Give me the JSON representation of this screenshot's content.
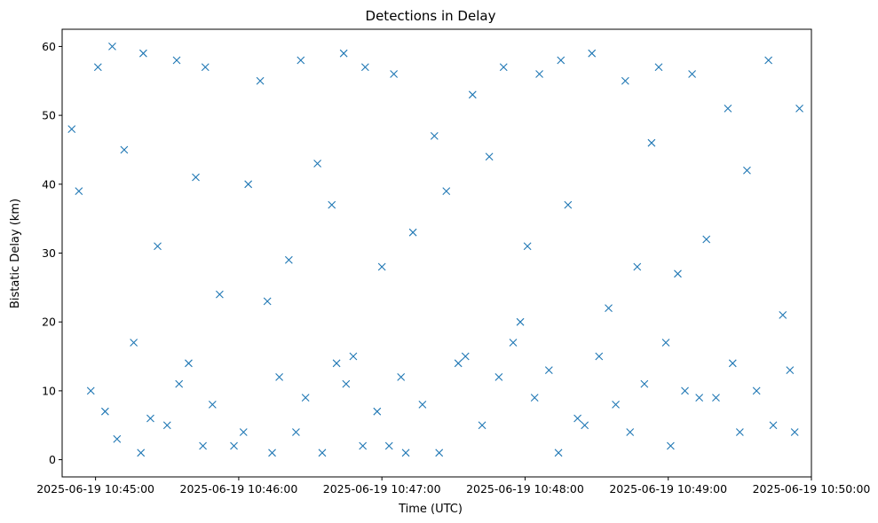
{
  "chart_data": {
    "type": "scatter",
    "title": "Detections in Delay",
    "xlabel": "Time (UTC)",
    "ylabel": "Bistatic Delay (km)",
    "marker": "x",
    "marker_color": "#1f77b4",
    "xlim": [
      "2025-06-19 10:44:46",
      "2025-06-19 10:50:00"
    ],
    "ylim": [
      -2.5,
      62.5
    ],
    "x_tick_labels": [
      "2025-06-19 10:45:00",
      "2025-06-19 10:46:00",
      "2025-06-19 10:47:00",
      "2025-06-19 10:48:00",
      "2025-06-19 10:49:00",
      "2025-06-19 10:50:00"
    ],
    "y_ticks": [
      0,
      10,
      20,
      30,
      40,
      50,
      60
    ],
    "y_tick_labels": [
      "0",
      "10",
      "20",
      "30",
      "40",
      "50",
      "60"
    ],
    "grid": false,
    "legend": "none",
    "series": [
      {
        "x": [
          "10:44:50",
          "10:45:01",
          "10:45:07",
          "10:45:20",
          "10:45:34",
          "10:45:46",
          "10:46:09",
          "10:46:26",
          "10:46:44",
          "10:46:53",
          "10:47:05",
          "10:47:22",
          "10:47:38",
          "10:47:51",
          "10:48:06",
          "10:48:15",
          "10:48:28",
          "10:48:42",
          "10:48:56",
          "10:49:10",
          "10:49:25",
          "10:49:42",
          "10:49:55",
          "10:45:12",
          "10:46:33",
          "10:47:45",
          "10:48:53",
          "10:46:04",
          "10:44:53",
          "10:45:42",
          "10:46:39",
          "10:47:27",
          "10:48:18",
          "10:49:33",
          "10:45:26",
          "10:46:21",
          "10:47:13",
          "10:48:01",
          "10:48:47",
          "10:49:16",
          "10:45:52",
          "10:46:12",
          "10:47:00",
          "10:47:58",
          "10:48:35",
          "10:49:04",
          "10:49:48",
          "10:45:16",
          "10:46:48",
          "10:47:32"
        ],
        "y": [
          48,
          57,
          60,
          59,
          58,
          57,
          55,
          58,
          59,
          57,
          56,
          47,
          53,
          57,
          56,
          58,
          59,
          55,
          57,
          56,
          51,
          58,
          51,
          45,
          43,
          44,
          46,
          40,
          39,
          41,
          37,
          39,
          37,
          42,
          31,
          29,
          33,
          31,
          28,
          32,
          24,
          23,
          28,
          20,
          22,
          27,
          21,
          17,
          15,
          14
        ]
      },
      {
        "x": [
          "10:44:58",
          "10:45:23",
          "10:45:49",
          "10:46:17",
          "10:46:41",
          "10:47:08",
          "10:47:35",
          "10:48:04",
          "10:48:31",
          "10:48:59",
          "10:49:27",
          "10:49:51",
          "10:45:04",
          "10:45:39",
          "10:46:28",
          "10:47:17",
          "10:48:10",
          "10:48:50",
          "10:49:37",
          "10:45:30",
          "10:46:02",
          "10:46:58",
          "10:47:49",
          "10:48:38",
          "10:49:20",
          "10:45:09",
          "10:45:58",
          "10:46:52",
          "10:47:42",
          "10:48:22",
          "10:49:07",
          "10:49:44",
          "10:45:19",
          "10:46:35",
          "10:47:24",
          "10:48:14",
          "10:49:01",
          "10:49:53",
          "10:45:45",
          "10:46:24",
          "10:47:10",
          "10:48:25",
          "10:49:13",
          "10:46:45",
          "10:47:55",
          "10:48:44",
          "10:49:30",
          "10:45:35",
          "10:46:14",
          "10:47:03"
        ],
        "y": [
          10,
          6,
          8,
          12,
          14,
          12,
          15,
          9,
          15,
          17,
          14,
          13,
          7,
          14,
          9,
          8,
          13,
          11,
          10,
          5,
          4,
          7,
          12,
          8,
          9,
          3,
          2,
          2,
          5,
          6,
          10,
          5,
          1,
          1,
          1,
          1,
          2,
          4,
          2,
          4,
          1,
          5,
          9,
          11,
          17,
          4,
          4,
          11,
          1,
          2
        ]
      }
    ]
  }
}
